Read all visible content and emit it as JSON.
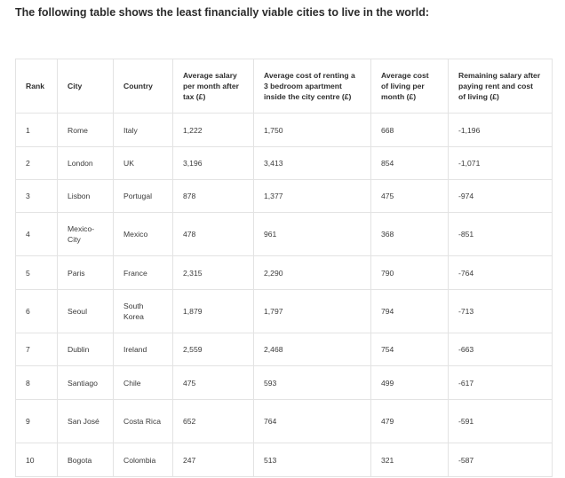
{
  "intro": "The following table shows the least financially viable cities to live in the world:",
  "table": {
    "headers": [
      "Rank",
      "City",
      "Country",
      "Average salary per month after tax (£)",
      "Average cost of renting a 3 bedroom apartment inside the city centre (£)",
      "Average cost of living per month (£)",
      "Remaining salary after paying rent and cost of living (£)"
    ],
    "rows": [
      [
        "1",
        "Rome",
        "Italy",
        "1,222",
        "1,750",
        "668",
        "-1,196"
      ],
      [
        "2",
        "London",
        "UK",
        "3,196",
        "3,413",
        "854",
        "-1,071"
      ],
      [
        "3",
        "Lisbon",
        "Portugal",
        "878",
        "1,377",
        "475",
        "-974"
      ],
      [
        "4",
        "Mexico-City",
        "Mexico",
        "478",
        "961",
        "368",
        "-851"
      ],
      [
        "5",
        "Paris",
        "France",
        "2,315",
        "2,290",
        "790",
        "-764"
      ],
      [
        "6",
        "Seoul",
        "South Korea",
        "1,879",
        "1,797",
        "794",
        "-713"
      ],
      [
        "7",
        "Dublin",
        "Ireland",
        "2,559",
        "2,468",
        "754",
        "-663"
      ],
      [
        "8",
        "Santiago",
        "Chile",
        "475",
        "593",
        "499",
        "-617"
      ],
      [
        "9",
        "San José",
        "Costa Rica",
        "652",
        "764",
        "479",
        "-591"
      ],
      [
        "10",
        "Bogota",
        "Colombia",
        "247",
        "513",
        "321",
        "-587"
      ]
    ]
  }
}
